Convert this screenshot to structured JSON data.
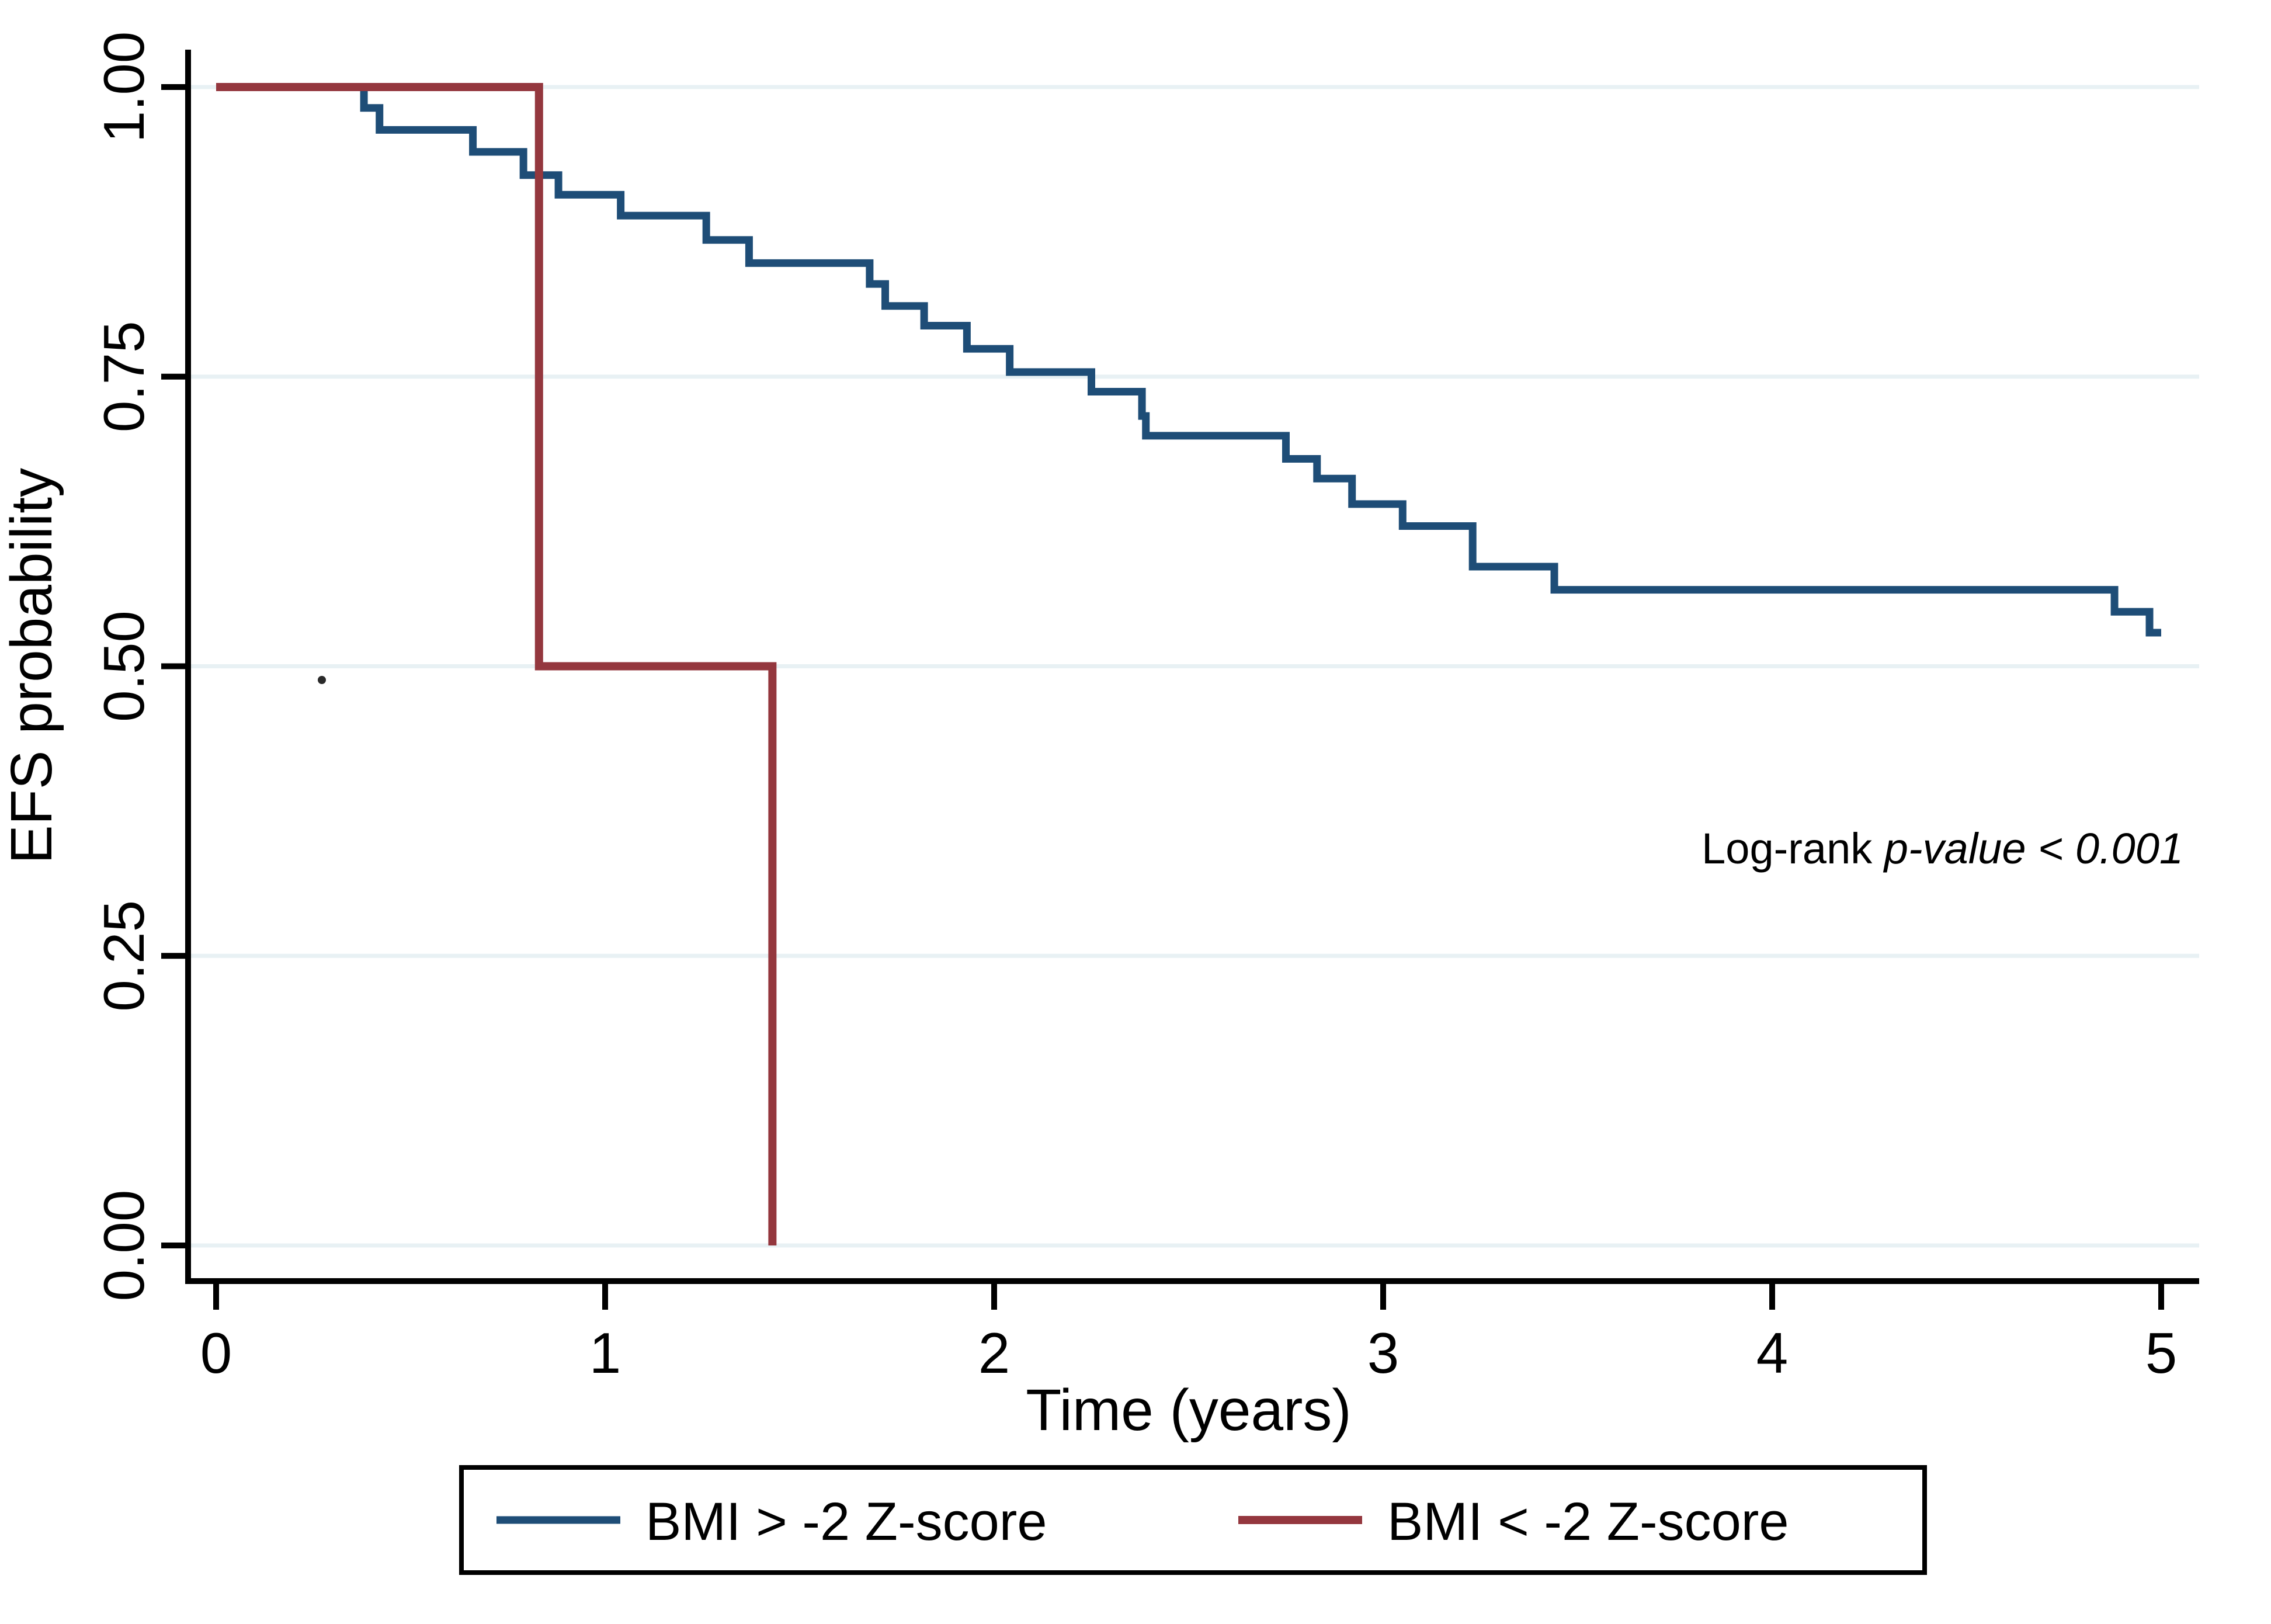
{
  "figure": {
    "background": "#ffffff",
    "axis_color": "#000000",
    "gridline_color": "#e8f1f4"
  },
  "chart_data": {
    "type": "line",
    "subtype": "kaplan-meier-step",
    "title": "",
    "xlabel": "Time (years)",
    "ylabel": "EFS probability",
    "xlim": [
      0,
      5
    ],
    "ylim": [
      0,
      1
    ],
    "grid": "horizontal",
    "legend_position": "bottom-center",
    "xticks": [
      {
        "value": 0,
        "label": "0"
      },
      {
        "value": 1,
        "label": "1"
      },
      {
        "value": 2,
        "label": "2"
      },
      {
        "value": 3,
        "label": "3"
      },
      {
        "value": 4,
        "label": "4"
      },
      {
        "value": 5,
        "label": "5"
      }
    ],
    "yticks": [
      {
        "value": 1.0,
        "label": "1.00"
      },
      {
        "value": 0.75,
        "label": "0.75"
      },
      {
        "value": 0.5,
        "label": "0.50"
      },
      {
        "value": 0.25,
        "label": "0.25"
      },
      {
        "value": 0.0,
        "label": "0.00"
      }
    ],
    "annotation": {
      "prefix": "Log-rank ",
      "italic": "p-value < 0.001"
    },
    "series": [
      {
        "name": "BMI > -2 Z-score",
        "color": "#1e4d77",
        "start": {
          "t": 0,
          "p": 1.0
        },
        "end_t": 5.0,
        "events": [
          [
            0.38,
            0.982
          ],
          [
            0.42,
            0.963
          ],
          [
            0.66,
            0.944
          ],
          [
            0.79,
            0.924
          ],
          [
            0.88,
            0.907
          ],
          [
            1.04,
            0.889
          ],
          [
            1.26,
            0.868
          ],
          [
            1.37,
            0.848
          ],
          [
            1.68,
            0.83
          ],
          [
            1.72,
            0.811
          ],
          [
            1.82,
            0.794
          ],
          [
            1.93,
            0.774
          ],
          [
            2.04,
            0.754
          ],
          [
            2.25,
            0.737
          ],
          [
            2.38,
            0.716
          ],
          [
            2.39,
            0.699
          ],
          [
            2.75,
            0.679
          ],
          [
            2.83,
            0.662
          ],
          [
            2.92,
            0.64
          ],
          [
            3.05,
            0.621
          ],
          [
            3.23,
            0.586
          ],
          [
            3.44,
            0.566
          ],
          [
            4.88,
            0.547
          ],
          [
            4.97,
            0.529
          ]
        ]
      },
      {
        "name": "BMI < -2 Z-score",
        "color": "#94373e",
        "start": {
          "t": 0,
          "p": 1.0
        },
        "end_t": 1.43,
        "events": [
          [
            0.83,
            0.5
          ],
          [
            1.43,
            0.0
          ]
        ]
      }
    ]
  }
}
